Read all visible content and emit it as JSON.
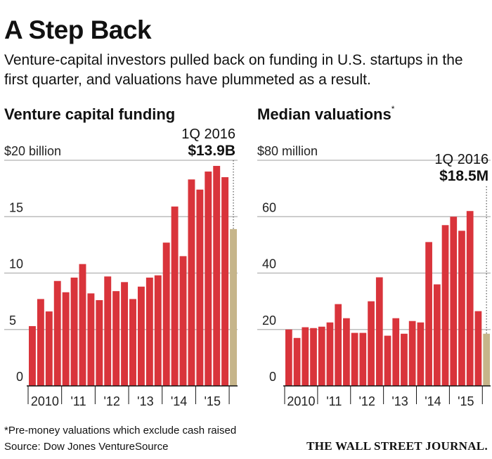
{
  "header": {
    "title": "A Step Back",
    "subtitle": "Venture-capital investors pulled back on funding in U.S. startups in the first quarter, and valuations have plummeted as a result."
  },
  "colors": {
    "bar": "#d9343b",
    "highlight_bar": "#c6b58a",
    "grid": "#bdbdbd",
    "text": "#111111"
  },
  "chart_data": [
    {
      "type": "bar",
      "title": "Venture capital funding",
      "title_marker": "",
      "top_tick_label": "$20 billion",
      "ytick_labels": [
        "0",
        "5",
        "10",
        "15",
        "$20 billion"
      ],
      "yticks": [
        0,
        5,
        10,
        15,
        20
      ],
      "ylim": [
        0,
        20
      ],
      "xtick_labels": [
        "2010",
        "'11",
        "'12",
        "'13",
        "'14",
        "'15"
      ],
      "quarters_per_year": 4,
      "values": [
        5.3,
        7.7,
        6.6,
        9.3,
        8.3,
        9.6,
        10.8,
        8.2,
        7.6,
        9.7,
        8.4,
        9.2,
        7.7,
        8.8,
        9.6,
        9.8,
        12.7,
        15.9,
        11.5,
        18.3,
        17.4,
        19.0,
        19.5,
        18.5,
        13.9
      ],
      "highlight": {
        "index": 24,
        "label": "1Q 2016",
        "value_label": "$13.9B"
      }
    },
    {
      "type": "bar",
      "title": "Median valuations",
      "title_marker": "*",
      "top_tick_label": "$80 million",
      "ytick_labels": [
        "0",
        "20",
        "40",
        "60",
        "$80 million"
      ],
      "yticks": [
        0,
        20,
        40,
        60,
        80
      ],
      "ylim": [
        0,
        80
      ],
      "xtick_labels": [
        "2010",
        "'11",
        "'12",
        "'13",
        "'14",
        "'15"
      ],
      "quarters_per_year": 4,
      "values": [
        20.0,
        17.0,
        20.8,
        20.5,
        21.0,
        22.5,
        29.0,
        24.0,
        18.8,
        18.8,
        30.0,
        38.5,
        17.8,
        24.0,
        18.5,
        23.0,
        22.5,
        51.0,
        36.0,
        57.0,
        60.0,
        55.0,
        62.0,
        26.5,
        18.5
      ],
      "highlight": {
        "index": 24,
        "label": "1Q 2016",
        "value_label": "$18.5M"
      }
    }
  ],
  "footer": {
    "footnote": "*Pre-money valuations which exclude cash raised",
    "source": "Source: Dow Jones VentureSource",
    "publisher": "THE WALL STREET JOURNAL."
  }
}
